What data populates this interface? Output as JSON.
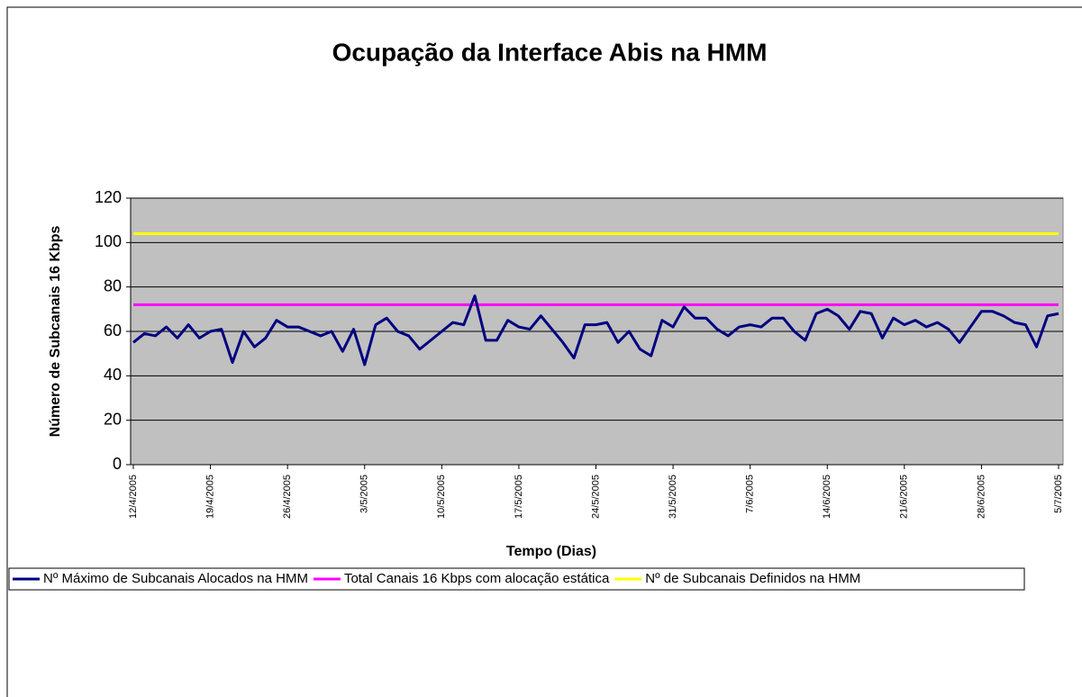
{
  "chart_data": {
    "type": "line",
    "title": "Ocupação da Interface Abis na HMM",
    "x_label": "Tempo (Dias)",
    "y_label": "Número de Subcanais 16 Kbps",
    "categories": [
      "12/4/2005",
      null,
      null,
      null,
      null,
      null,
      null,
      "19/4/2005",
      null,
      null,
      null,
      null,
      null,
      null,
      "26/4/2005",
      null,
      null,
      null,
      null,
      null,
      null,
      "3/5/2005",
      null,
      null,
      null,
      null,
      null,
      null,
      "10/5/2005",
      null,
      null,
      null,
      null,
      null,
      null,
      "17/5/2005",
      null,
      null,
      null,
      null,
      null,
      null,
      "24/5/2005",
      null,
      null,
      null,
      null,
      null,
      null,
      "31/5/2005",
      null,
      null,
      null,
      null,
      null,
      null,
      "7/6/2005",
      null,
      null,
      null,
      null,
      null,
      null,
      "14/6/2005",
      null,
      null,
      null,
      null,
      null,
      null,
      "21/6/2005",
      null,
      null,
      null,
      null,
      null,
      null,
      "28/6/2005",
      null,
      null,
      null,
      null,
      null,
      null,
      "5/7/2005"
    ],
    "series": [
      {
        "name": "Nº Máximo de Subcanais Alocados na HMM",
        "color": "#000080",
        "values": [
          55,
          59,
          58,
          62,
          57,
          63,
          57,
          60,
          61,
          46,
          60,
          53,
          57,
          65,
          62,
          62,
          60,
          58,
          60,
          51,
          61,
          45,
          63,
          66,
          60,
          58,
          52,
          56,
          60,
          64,
          63,
          76,
          56,
          56,
          65,
          62,
          61,
          67,
          61,
          55,
          48,
          63,
          63,
          64,
          55,
          60,
          52,
          49,
          65,
          62,
          71,
          66,
          66,
          61,
          58,
          62,
          63,
          62,
          66,
          66,
          60,
          56,
          68,
          70,
          67,
          61,
          69,
          68,
          57,
          66,
          63,
          65,
          62,
          64,
          61,
          55,
          62,
          69,
          69,
          67,
          64,
          63,
          53,
          67,
          68
        ]
      },
      {
        "name": "Total Canais 16 Kbps com alocação estática",
        "color": "#ff00ff",
        "values": [
          72,
          72,
          72,
          72,
          72,
          72,
          72,
          72,
          72,
          72,
          72,
          72,
          72,
          72,
          72,
          72,
          72,
          72,
          72,
          72,
          72,
          72,
          72,
          72,
          72,
          72,
          72,
          72,
          72,
          72,
          72,
          72,
          72,
          72,
          72,
          72,
          72,
          72,
          72,
          72,
          72,
          72,
          72,
          72,
          72,
          72,
          72,
          72,
          72,
          72,
          72,
          72,
          72,
          72,
          72,
          72,
          72,
          72,
          72,
          72,
          72,
          72,
          72,
          72,
          72,
          72,
          72,
          72,
          72,
          72,
          72,
          72,
          72,
          72,
          72,
          72,
          72,
          72,
          72,
          72,
          72,
          72,
          72,
          72,
          72
        ]
      },
      {
        "name": "Nº de Subcanais Definidos na HMM",
        "color": "#ffff00",
        "values": [
          104,
          104,
          104,
          104,
          104,
          104,
          104,
          104,
          104,
          104,
          104,
          104,
          104,
          104,
          104,
          104,
          104,
          104,
          104,
          104,
          104,
          104,
          104,
          104,
          104,
          104,
          104,
          104,
          104,
          104,
          104,
          104,
          104,
          104,
          104,
          104,
          104,
          104,
          104,
          104,
          104,
          104,
          104,
          104,
          104,
          104,
          104,
          104,
          104,
          104,
          104,
          104,
          104,
          104,
          104,
          104,
          104,
          104,
          104,
          104,
          104,
          104,
          104,
          104,
          104,
          104,
          104,
          104,
          104,
          104,
          104,
          104,
          104,
          104,
          104,
          104,
          104,
          104,
          104,
          104,
          104,
          104,
          104,
          104,
          104
        ]
      }
    ],
    "ylim": [
      0,
      120
    ],
    "yticks": [
      0,
      20,
      40,
      60,
      80,
      100,
      120
    ],
    "grid": true,
    "legend": "bottom",
    "plot_background": "#c0c0c0"
  }
}
